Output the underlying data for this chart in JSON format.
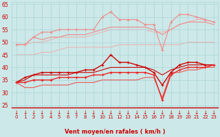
{
  "x": [
    0,
    1,
    2,
    3,
    4,
    5,
    6,
    7,
    8,
    9,
    10,
    11,
    12,
    13,
    14,
    15,
    16,
    17,
    18,
    19,
    20,
    21,
    22,
    23
  ],
  "series": [
    {
      "values": [
        49,
        49,
        52,
        54,
        54,
        55,
        55,
        55,
        55,
        55,
        60,
        62,
        59,
        59,
        59,
        57,
        57,
        47,
        58,
        61,
        61,
        60,
        59,
        58
      ],
      "color": "#f08888",
      "marker": "+",
      "markersize": 3,
      "linewidth": 0.8,
      "zorder": 2
    },
    {
      "values": [
        49,
        49,
        52,
        51,
        52,
        52,
        53,
        53,
        53,
        54,
        55,
        56,
        56,
        56,
        56,
        56,
        55,
        53,
        55,
        57,
        58,
        58,
        58,
        57
      ],
      "color": "#f08888",
      "marker": null,
      "markersize": 0,
      "linewidth": 0.8,
      "zorder": 2
    },
    {
      "values": [
        49,
        49,
        50,
        50,
        51,
        52,
        52,
        52,
        52,
        53,
        54,
        55,
        55,
        55,
        55,
        55,
        54,
        54,
        55,
        57,
        58,
        59,
        59,
        58
      ],
      "color": "#f4aaaa",
      "marker": null,
      "markersize": 0,
      "linewidth": 0.7,
      "zorder": 1
    },
    {
      "values": [
        45,
        45,
        45,
        46,
        46,
        47,
        48,
        48,
        48,
        48,
        48,
        48,
        49,
        49,
        49,
        49,
        49,
        49,
        49,
        49,
        50,
        50,
        50,
        50
      ],
      "color": "#f4aaaa",
      "marker": null,
      "markersize": 0,
      "linewidth": 0.7,
      "zorder": 1
    },
    {
      "values": [
        34,
        36,
        37,
        38,
        38,
        38,
        38,
        38,
        39,
        39,
        41,
        45,
        42,
        42,
        41,
        40,
        38,
        33,
        38,
        41,
        42,
        42,
        41,
        41
      ],
      "color": "#cc0000",
      "marker": "+",
      "markersize": 3,
      "linewidth": 1.0,
      "zorder": 4
    },
    {
      "values": [
        34,
        35,
        37,
        37,
        37,
        37,
        37,
        38,
        38,
        38,
        39,
        40,
        40,
        40,
        40,
        40,
        39,
        37,
        39,
        40,
        41,
        41,
        41,
        41
      ],
      "color": "#cc0000",
      "marker": null,
      "markersize": 0,
      "linewidth": 0.8,
      "zorder": 3
    },
    {
      "values": [
        34,
        34,
        35,
        35,
        35,
        36,
        36,
        36,
        36,
        37,
        37,
        38,
        38,
        38,
        38,
        38,
        37,
        27,
        37,
        39,
        40,
        40,
        40,
        41
      ],
      "color": "#ee2222",
      "marker": "+",
      "markersize": 3,
      "linewidth": 1.0,
      "zorder": 4
    },
    {
      "values": [
        34,
        32,
        32,
        33,
        33,
        33,
        33,
        34,
        34,
        34,
        35,
        35,
        35,
        35,
        35,
        36,
        36,
        28,
        38,
        38,
        39,
        39,
        40,
        40
      ],
      "color": "#ee5555",
      "marker": null,
      "markersize": 0,
      "linewidth": 0.8,
      "zorder": 2
    }
  ],
  "xlabel": "Vent moyen/en rafales ( km/h )",
  "xlim_min": -0.5,
  "xlim_max": 23.5,
  "ylim_min": 24,
  "ylim_max": 66,
  "yticks": [
    25,
    30,
    35,
    40,
    45,
    50,
    55,
    60,
    65
  ],
  "xticks": [
    0,
    1,
    2,
    3,
    4,
    5,
    6,
    7,
    8,
    9,
    10,
    11,
    12,
    13,
    14,
    15,
    16,
    17,
    18,
    19,
    20,
    21,
    22,
    23
  ],
  "grid_color": "#aad4d4",
  "bg_color": "#cce8e8",
  "xlabel_color": "#cc0000",
  "tick_color": "#cc0000",
  "arrow_color": "#cc0000",
  "spine_color": "#cc0000"
}
